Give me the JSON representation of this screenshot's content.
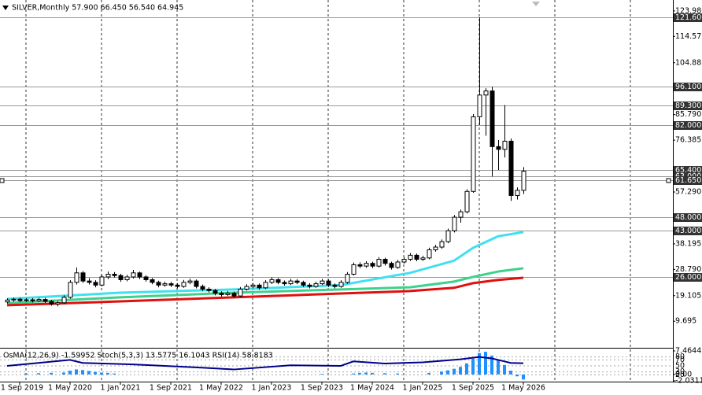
{
  "chart_data": [
    {
      "type": "candlestick",
      "title": "SILVER,Monthly  57.900 66.450 56.540 64.945",
      "candles": [
        [
          16.8,
          18.1,
          16.2,
          17.5
        ],
        [
          17.5,
          18.4,
          16.9,
          17.8
        ],
        [
          17.8,
          18.4,
          16.8,
          17.3
        ],
        [
          17.3,
          18.2,
          16.8,
          17.6
        ],
        [
          17.6,
          18.2,
          16.6,
          17.2
        ],
        [
          17.2,
          18.3,
          16.8,
          17.7
        ],
        [
          17.7,
          18.3,
          16.4,
          17.0
        ],
        [
          17.0,
          17.6,
          15.4,
          16.0
        ],
        [
          16.0,
          17.1,
          15.2,
          16.5
        ],
        [
          16.5,
          19.2,
          16.0,
          18.5
        ],
        [
          18.5,
          24.8,
          18.0,
          24.0
        ],
        [
          24.0,
          29.5,
          23.2,
          27.5
        ],
        [
          27.5,
          28.2,
          23.8,
          24.5
        ],
        [
          24.5,
          25.6,
          23.2,
          24.0
        ],
        [
          24.0,
          24.8,
          22.2,
          23.0
        ],
        [
          23.0,
          26.8,
          22.5,
          26.0
        ],
        [
          26.0,
          28.0,
          25.2,
          27.0
        ],
        [
          27.0,
          27.8,
          25.8,
          26.5
        ],
        [
          26.5,
          27.2,
          24.2,
          25.0
        ],
        [
          25.0,
          26.8,
          24.4,
          26.0
        ],
        [
          26.0,
          28.6,
          25.4,
          27.5
        ],
        [
          27.5,
          28.0,
          25.2,
          26.0
        ],
        [
          26.0,
          26.6,
          24.3,
          25.0
        ],
        [
          25.0,
          25.6,
          23.3,
          24.0
        ],
        [
          24.0,
          24.6,
          22.2,
          23.0
        ],
        [
          23.0,
          24.3,
          22.4,
          23.5
        ],
        [
          23.5,
          24.2,
          22.3,
          23.0
        ],
        [
          23.0,
          23.7,
          21.8,
          22.5
        ],
        [
          22.5,
          24.9,
          22.0,
          24.0
        ],
        [
          24.0,
          25.4,
          23.3,
          24.5
        ],
        [
          24.5,
          25.1,
          21.8,
          22.5
        ],
        [
          22.5,
          23.2,
          20.8,
          21.5
        ],
        [
          21.5,
          22.2,
          20.3,
          21.0
        ],
        [
          21.0,
          21.6,
          19.2,
          20.0
        ],
        [
          20.0,
          20.7,
          18.8,
          19.5
        ],
        [
          19.5,
          20.8,
          19.0,
          20.0
        ],
        [
          20.0,
          20.6,
          18.3,
          19.0
        ],
        [
          19.0,
          22.3,
          18.6,
          21.5
        ],
        [
          21.5,
          23.3,
          21.0,
          22.5
        ],
        [
          22.5,
          23.8,
          21.8,
          23.0
        ],
        [
          23.0,
          23.6,
          21.3,
          22.0
        ],
        [
          22.0,
          24.8,
          21.5,
          24.0
        ],
        [
          24.0,
          25.9,
          23.4,
          25.0
        ],
        [
          25.0,
          25.6,
          23.3,
          24.0
        ],
        [
          24.0,
          24.7,
          22.8,
          23.5
        ],
        [
          23.5,
          25.3,
          23.0,
          24.5
        ],
        [
          24.5,
          25.2,
          23.3,
          24.0
        ],
        [
          24.0,
          24.6,
          22.3,
          23.0
        ],
        [
          23.0,
          23.7,
          21.8,
          22.5
        ],
        [
          22.5,
          24.3,
          22.0,
          23.5
        ],
        [
          23.5,
          25.3,
          23.0,
          24.5
        ],
        [
          24.5,
          25.1,
          22.3,
          23.0
        ],
        [
          23.0,
          23.6,
          21.8,
          22.5
        ],
        [
          22.5,
          24.8,
          22.0,
          24.0
        ],
        [
          24.0,
          27.8,
          23.5,
          27.0
        ],
        [
          27.0,
          31.3,
          26.5,
          30.5
        ],
        [
          30.5,
          31.4,
          29.2,
          30.0
        ],
        [
          30.0,
          31.8,
          29.4,
          31.0
        ],
        [
          31.0,
          31.6,
          29.2,
          30.0
        ],
        [
          30.0,
          33.3,
          29.5,
          32.5
        ],
        [
          32.5,
          33.1,
          30.2,
          31.0
        ],
        [
          31.0,
          31.6,
          28.7,
          29.5
        ],
        [
          29.5,
          32.3,
          29.0,
          31.5
        ],
        [
          31.5,
          33.3,
          30.9,
          32.5
        ],
        [
          32.5,
          34.8,
          31.9,
          34.0
        ],
        [
          34.0,
          34.6,
          31.8,
          32.5
        ],
        [
          32.5,
          33.8,
          31.9,
          33.0
        ],
        [
          33.0,
          36.8,
          32.5,
          36.0
        ],
        [
          36.0,
          37.8,
          35.3,
          37.0
        ],
        [
          37.0,
          39.8,
          36.4,
          39.0
        ],
        [
          39.0,
          43.8,
          38.4,
          43.0
        ],
        [
          43.0,
          48.8,
          42.4,
          48.0
        ],
        [
          48.0,
          50.8,
          46.0,
          50.0
        ],
        [
          50.0,
          58.3,
          49.4,
          57.5
        ],
        [
          57.5,
          86.0,
          57.0,
          85.0
        ],
        [
          85.0,
          121.6,
          82.0,
          93.0
        ],
        [
          93.0,
          95.5,
          78.0,
          94.5
        ],
        [
          94.5,
          96.1,
          63.0,
          74.0
        ],
        [
          74.0,
          76.4,
          65.4,
          73.0
        ],
        [
          73.0,
          89.3,
          70.0,
          76.0
        ],
        [
          76.0,
          77.0,
          54.0,
          56.0
        ],
        [
          56.0,
          59.0,
          54.5,
          57.9
        ],
        [
          57.9,
          66.45,
          56.54,
          64.945
        ]
      ],
      "up_color": "#ffffff",
      "down_color": "#000000",
      "xlim": [
        -1.125,
        105.75
      ],
      "xticks": [
        {
          "value": 2,
          "label": "1 Sep 2019"
        },
        {
          "value": 10,
          "label": "1 May 2020"
        },
        {
          "value": 18,
          "label": "1 Jan 2021"
        },
        {
          "value": 26,
          "label": "1 Sep 2021"
        },
        {
          "value": 34,
          "label": "1 May 2022"
        },
        {
          "value": 42,
          "label": "1 Jan 2023"
        },
        {
          "value": 50,
          "label": "1 Sep 2023"
        },
        {
          "value": 58,
          "label": "1 May 2024"
        },
        {
          "value": 66,
          "label": "1 Jan 2025"
        },
        {
          "value": 74,
          "label": "1 Sep 2025"
        },
        {
          "value": 82,
          "label": "1 May 2026"
        }
      ],
      "ylim": [
        0.2,
        128
      ],
      "yticks": [
        {
          "value": 123.98,
          "label": "123.980"
        },
        114.575,
        104.885,
        {
          "value": 85.79,
          "label": "85.790"
        },
        76.385,
        {
          "value": 57.29,
          "label": "57.290"
        },
        38.195,
        {
          "value": 28.79,
          "label": "28.790"
        },
        19.105,
        9.695
      ],
      "levels": [
        {
          "value": 121.6,
          "label": "121.600"
        },
        {
          "value": 96.1,
          "label": "96.100"
        },
        {
          "value": 89.3,
          "label": "89.300"
        },
        {
          "value": 82,
          "label": "82.000"
        },
        {
          "value": 65.4,
          "label": "65.400"
        },
        {
          "value": 63,
          "label": "63.000"
        },
        {
          "value": 61.65,
          "label": "61.650"
        },
        {
          "value": 48,
          "label": "48.000"
        },
        {
          "value": 43,
          "label": "43.000"
        },
        {
          "value": 26,
          "label": "26.000"
        }
      ],
      "series": [
        {
          "color": "#40e0f0",
          "x": [
            0,
            18,
            36,
            53,
            64,
            71,
            74,
            78,
            82
          ],
          "values": [
            17.9,
            20.2,
            21.4,
            23.0,
            27.5,
            32.0,
            36.7,
            41.0,
            42.5
          ]
        },
        {
          "color": "#3cd28c",
          "x": [
            0,
            18,
            36,
            53,
            64,
            71,
            74,
            78,
            82
          ],
          "values": [
            16.4,
            18.5,
            20.2,
            21.4,
            22.2,
            24.3,
            26.0,
            28.0,
            29.2
          ]
        },
        {
          "color": "#e01010",
          "x": [
            0,
            18,
            36,
            53,
            64,
            71,
            74,
            78,
            82
          ],
          "values": [
            15.6,
            17.0,
            18.5,
            19.9,
            20.8,
            22.0,
            23.7,
            24.9,
            25.7
          ]
        }
      ]
    },
    {
      "type": "oscillator",
      "title": "OsMA(12,26,9) -1.59952  Stoch(5,3,3) 13.5775 16.1043  RSI(14) 58.8183",
      "xlim": [
        -1.125,
        105.75
      ],
      "ylim": [
        0,
        100
      ],
      "yticks": [
        80,
        70,
        50,
        30,
        20
      ],
      "y2lim": [
        -2.03114,
        7.46445
      ],
      "y2ticks": [
        7.46445,
        {
          "value": 0,
          "label": "0.00"
        },
        -2.03114
      ],
      "histogram": {
        "axis": "y2",
        "color": "#1e90ff",
        "x": [
          3,
          5,
          7,
          9,
          10,
          11,
          12,
          13,
          14,
          15,
          16,
          17,
          50,
          55,
          56,
          57,
          58,
          60,
          62,
          67,
          69,
          70,
          71,
          72,
          73,
          74,
          75,
          76,
          77,
          78,
          79,
          80,
          81,
          82
        ],
        "values": [
          0.3,
          0.4,
          0.5,
          0.6,
          1.2,
          1.6,
          1.4,
          1.1,
          0.8,
          0.6,
          0.5,
          0.3,
          0.2,
          0.3,
          0.5,
          0.6,
          0.5,
          0.4,
          0.3,
          0.5,
          0.9,
          1.3,
          1.8,
          2.4,
          3.5,
          5.0,
          6.8,
          7.2,
          6.0,
          4.5,
          3.0,
          1.2,
          -0.6,
          -1.59952
        ]
      },
      "series": [
        {
          "color": "#00008b",
          "x": [
            0,
            10,
            12,
            20,
            30,
            36,
            45,
            53,
            55,
            60,
            66,
            72,
            75,
            77,
            80,
            82
          ],
          "values": [
            50,
            70,
            60,
            55,
            45,
            38,
            52,
            50,
            65,
            58,
            62,
            72,
            80,
            75,
            60,
            58.8183
          ]
        }
      ]
    }
  ]
}
